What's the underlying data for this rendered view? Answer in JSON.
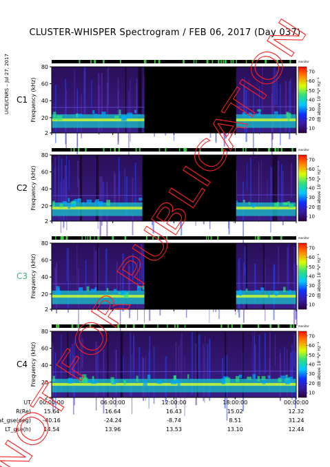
{
  "title": "CLUSTER-WHISPER Spectrogram / FEB 06, 2017 (Day 037)",
  "side_note": "UiCE/CNRS – Jul 27, 2017",
  "watermark": "NOT FOR PUBLICATION",
  "colors": {
    "background": "#000000",
    "c3_label": "#3cb371",
    "cal_bar": "#000000",
    "cal_gap": "#33cc33"
  },
  "chart_data": {
    "type": "heatmap",
    "panels": [
      {
        "label": "C1",
        "ylabel": "Frequency (kHz)",
        "yticks": [
          2,
          20,
          40,
          60,
          80
        ],
        "data_gap_hours": [
          9.1,
          18.1
        ],
        "time_coverage_hours": [
          0,
          24
        ]
      },
      {
        "label": "C2",
        "ylabel": "Frequency (kHz)",
        "yticks": [
          2,
          20,
          40,
          60,
          80
        ],
        "data_gap_hours": [
          8.9,
          18.1
        ],
        "time_coverage_hours": [
          0,
          24
        ]
      },
      {
        "label": "C3",
        "ylabel": "Frequency (kHz)",
        "yticks": [
          2,
          20,
          40,
          60,
          80
        ],
        "data_gap_hours": [
          9.1,
          18.1
        ],
        "time_coverage_hours": [
          0,
          24
        ]
      },
      {
        "label": "C4",
        "ylabel": "Frequency (kHz)",
        "yticks": [
          2,
          20,
          40,
          60,
          80
        ],
        "data_gap_hours": null,
        "time_coverage_hours": [
          0,
          24
        ]
      }
    ],
    "ylim": [
      2,
      80
    ],
    "xlim_hours": [
      0,
      24
    ],
    "x_ticks": [
      "00:00:00",
      "06:00:00",
      "12:00:00",
      "18:00:00",
      "00:00:00"
    ],
    "colorbar": {
      "label": "dB above 10⁻⁸V² Hz⁻¹",
      "ticks": [
        10,
        20,
        30,
        40,
        50,
        60,
        70
      ],
      "range": [
        5,
        75
      ],
      "header": "monitor"
    },
    "ephemeris": [
      {
        "name": "UT",
        "values": [
          "00:00:00",
          "06:00:00",
          "12:00:00",
          "18:00:00",
          "00:00:00"
        ]
      },
      {
        "name": "R(Re)",
        "values": [
          "15.64",
          "16.64",
          "16.43",
          "15.02",
          "12.32"
        ]
      },
      {
        "name": "Lat_gse(deg)",
        "values": [
          "-40.16",
          "-24.24",
          "-8.74",
          "8.51",
          "31.24"
        ]
      },
      {
        "name": "LT_gse(h)",
        "values": [
          "14.54",
          "13.96",
          "13.53",
          "13.10",
          "12.44"
        ]
      }
    ]
  }
}
